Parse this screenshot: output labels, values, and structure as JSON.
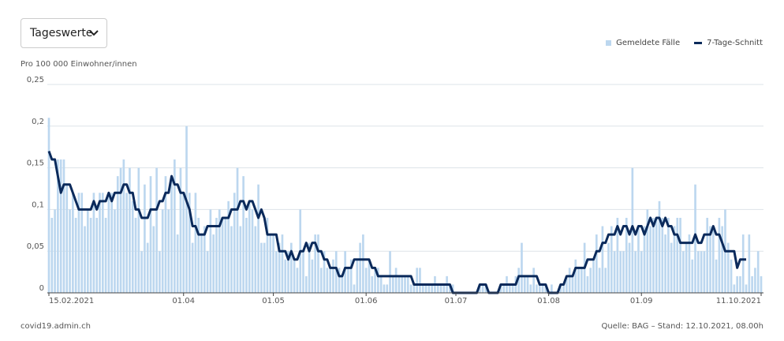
{
  "controls": {
    "dropdown": "Tageswerte"
  },
  "footer": {
    "source_site": "covid19.admin.ch",
    "source_note": "Quelle: BAG – Stand: 12.10.2021, 08.00h"
  },
  "chart_data": {
    "type": "bar",
    "y_label": "Pro 100 000 Einwohner/innen",
    "categories": [
      "15.02.2021",
      null,
      null,
      null,
      null,
      null,
      null,
      null,
      null,
      null,
      null,
      null,
      null,
      null,
      null,
      null,
      null,
      null,
      null,
      null,
      null,
      null,
      null,
      null,
      null,
      null,
      null,
      null,
      null,
      null,
      null,
      null,
      null,
      null,
      null,
      null,
      null,
      null,
      null,
      null,
      null,
      null,
      null,
      null,
      null,
      "01.04",
      null,
      null,
      null,
      null,
      null,
      null,
      null,
      null,
      null,
      null,
      null,
      null,
      null,
      null,
      null,
      null,
      null,
      null,
      null,
      null,
      null,
      null,
      null,
      null,
      null,
      null,
      null,
      null,
      null,
      "01.05",
      null,
      null,
      null,
      null,
      null,
      null,
      null,
      null,
      null,
      null,
      null,
      null,
      null,
      null,
      null,
      null,
      null,
      null,
      null,
      null,
      null,
      null,
      null,
      null,
      null,
      null,
      null,
      null,
      null,
      null,
      "01.06",
      null,
      null,
      null,
      null,
      null,
      null,
      null,
      null,
      null,
      null,
      null,
      null,
      null,
      null,
      null,
      null,
      null,
      null,
      null,
      null,
      null,
      null,
      null,
      null,
      null,
      null,
      null,
      null,
      null,
      "01.07",
      null,
      null,
      null,
      null,
      null,
      null,
      null,
      null,
      null,
      null,
      null,
      null,
      null,
      null,
      null,
      null,
      null,
      null,
      null,
      null,
      null,
      null,
      null,
      null,
      null,
      null,
      null,
      null,
      null,
      null,
      "01.08",
      null,
      null,
      null,
      null,
      null,
      null,
      null,
      null,
      null,
      null,
      null,
      null,
      null,
      null,
      null,
      null,
      null,
      null,
      null,
      null,
      null,
      null,
      null,
      null,
      null,
      null,
      null,
      null,
      null,
      null,
      "01.09",
      null,
      null,
      null,
      null,
      null,
      null,
      null,
      null,
      null,
      null,
      null,
      null,
      null,
      null,
      null,
      null,
      null,
      null,
      null,
      null,
      null,
      null,
      null,
      null,
      null,
      null,
      null,
      null,
      null,
      null,
      null,
      null,
      null,
      null,
      null,
      null,
      null,
      null,
      null,
      "11.10.2021"
    ],
    "series": [
      {
        "name": "Gemeldete Fälle",
        "color": "#bcd7ef",
        "values": [
          0.21,
          0.09,
          0.1,
          0.16,
          0.16,
          0.16,
          0.13,
          0.1,
          0.12,
          0.09,
          0.12,
          0.12,
          0.08,
          0.1,
          0.09,
          0.12,
          0.09,
          0.12,
          0.12,
          0.09,
          0.12,
          0.12,
          0.1,
          0.14,
          0.15,
          0.16,
          0.12,
          0.15,
          0.11,
          0.09,
          0.15,
          0.05,
          0.13,
          0.06,
          0.14,
          0.08,
          0.15,
          0.05,
          0.1,
          0.14,
          0.1,
          0.14,
          0.16,
          0.07,
          0.15,
          0.12,
          0.2,
          0.12,
          0.06,
          0.12,
          0.09,
          0.07,
          0.08,
          0.05,
          0.1,
          0.07,
          0.09,
          0.1,
          0.09,
          0.09,
          0.11,
          0.08,
          0.12,
          0.15,
          0.08,
          0.14,
          0.09,
          0.11,
          0.1,
          0.08,
          0.13,
          0.06,
          0.06,
          0.09,
          0.07,
          0.07,
          0.05,
          0.06,
          0.07,
          0.04,
          0.05,
          0.06,
          0.04,
          0.03,
          0.1,
          0.05,
          0.02,
          0.06,
          0.04,
          0.07,
          0.07,
          0.03,
          0.05,
          0.03,
          0.03,
          0.04,
          0.05,
          0.03,
          0.02,
          0.05,
          0.03,
          0.04,
          0.01,
          0.04,
          0.06,
          0.07,
          0.03,
          0.04,
          0.02,
          0.03,
          0.03,
          0.02,
          0.01,
          0.01,
          0.05,
          0.02,
          0.03,
          0.02,
          0.02,
          0.02,
          0.02,
          0.01,
          0.01,
          0.03,
          0.03,
          0.01,
          0.01,
          0.01,
          0.01,
          0.02,
          0.01,
          0.01,
          0.01,
          0.02,
          0.01,
          0.01,
          0,
          0,
          0,
          0,
          0,
          0,
          0,
          0,
          0.01,
          0.01,
          0.01,
          0,
          0,
          0,
          0,
          0.01,
          0.01,
          0.02,
          0.01,
          0.01,
          0.02,
          0.03,
          0.06,
          0.02,
          0.02,
          0.01,
          0.03,
          0.01,
          0.01,
          0.01,
          0.01,
          0,
          0.01,
          0,
          0,
          0.01,
          0.01,
          0.02,
          0.03,
          0.02,
          0.04,
          0.03,
          0.03,
          0.06,
          0.02,
          0.03,
          0.04,
          0.07,
          0.03,
          0.08,
          0.03,
          0.06,
          0.08,
          0.05,
          0.09,
          0.05,
          0.05,
          0.09,
          0.06,
          0.15,
          0.05,
          0.08,
          0.05,
          0.08,
          0.1,
          0.08,
          0.09,
          0.09,
          0.11,
          0.09,
          0.07,
          0.09,
          0.06,
          0.08,
          0.09,
          0.09,
          0.05,
          0.06,
          0.07,
          0.04,
          0.13,
          0.05,
          0.05,
          0.05,
          0.09,
          0.08,
          0.08,
          0.04,
          0.09,
          0.08,
          0.1,
          0.06,
          0.04,
          0.01,
          0.02,
          0.02,
          0.07,
          0.01,
          0.07,
          0.02,
          0.03,
          0.05,
          0.02
        ]
      },
      {
        "name": "7-Tage-Schnitt",
        "type": "line",
        "color": "#0b2a5b",
        "values": [
          0.17,
          0.16,
          0.16,
          0.14,
          0.12,
          0.13,
          0.13,
          0.13,
          0.12,
          0.11,
          0.1,
          0.1,
          0.1,
          0.1,
          0.1,
          0.11,
          0.1,
          0.11,
          0.11,
          0.11,
          0.12,
          0.11,
          0.12,
          0.12,
          0.12,
          0.13,
          0.13,
          0.12,
          0.12,
          0.1,
          0.1,
          0.09,
          0.09,
          0.09,
          0.1,
          0.1,
          0.1,
          0.11,
          0.11,
          0.12,
          0.12,
          0.14,
          0.13,
          0.13,
          0.12,
          0.12,
          0.11,
          0.1,
          0.08,
          0.08,
          0.07,
          0.07,
          0.07,
          0.08,
          0.08,
          0.08,
          0.08,
          0.08,
          0.09,
          0.09,
          0.09,
          0.1,
          0.1,
          0.1,
          0.11,
          0.11,
          0.1,
          0.11,
          0.11,
          0.1,
          0.09,
          0.1,
          0.09,
          0.07,
          0.07,
          0.07,
          0.07,
          0.05,
          0.05,
          0.05,
          0.04,
          0.05,
          0.04,
          0.04,
          0.05,
          0.05,
          0.06,
          0.05,
          0.06,
          0.06,
          0.05,
          0.05,
          0.04,
          0.04,
          0.03,
          0.03,
          0.03,
          0.02,
          0.02,
          0.03,
          0.03,
          0.03,
          0.04,
          0.04,
          0.04,
          0.04,
          0.04,
          0.04,
          0.03,
          0.03,
          0.02,
          0.02,
          0.02,
          0.02,
          0.02,
          0.02,
          0.02,
          0.02,
          0.02,
          0.02,
          0.02,
          0.02,
          0.01,
          0.01,
          0.01,
          0.01,
          0.01,
          0.01,
          0.01,
          0.01,
          0.01,
          0.01,
          0.01,
          0.01,
          0.01,
          0,
          0,
          0,
          0,
          0,
          0,
          0,
          0,
          0,
          0.01,
          0.01,
          0.01,
          0,
          0,
          0,
          0,
          0.01,
          0.01,
          0.01,
          0.01,
          0.01,
          0.01,
          0.02,
          0.02,
          0.02,
          0.02,
          0.02,
          0.02,
          0.02,
          0.01,
          0.01,
          0.01,
          0,
          0,
          0,
          0,
          0.01,
          0.01,
          0.02,
          0.02,
          0.02,
          0.03,
          0.03,
          0.03,
          0.03,
          0.04,
          0.04,
          0.04,
          0.05,
          0.05,
          0.06,
          0.06,
          0.07,
          0.07,
          0.07,
          0.08,
          0.07,
          0.08,
          0.08,
          0.07,
          0.08,
          0.07,
          0.08,
          0.08,
          0.07,
          0.08,
          0.09,
          0.08,
          0.09,
          0.09,
          0.08,
          0.09,
          0.08,
          0.08,
          0.07,
          0.07,
          0.06,
          0.06,
          0.06,
          0.06,
          0.06,
          0.07,
          0.06,
          0.06,
          0.07,
          0.07,
          0.07,
          0.08,
          0.07,
          0.07,
          0.06,
          0.05,
          0.05,
          0.05,
          0.05,
          0.03,
          0.04,
          0.04,
          0.04,
          null,
          null,
          null,
          null,
          null
        ]
      }
    ],
    "ylim": [
      0,
      0.25
    ],
    "yticks": [
      {
        "value": 0,
        "label": "0"
      },
      {
        "value": 0.05,
        "label": "0,05"
      },
      {
        "value": 0.1,
        "label": "0,1"
      },
      {
        "value": 0.15,
        "label": "0,15"
      },
      {
        "value": 0.2,
        "label": "0,2"
      },
      {
        "value": 0.25,
        "label": "0,25"
      }
    ],
    "grid": true
  }
}
